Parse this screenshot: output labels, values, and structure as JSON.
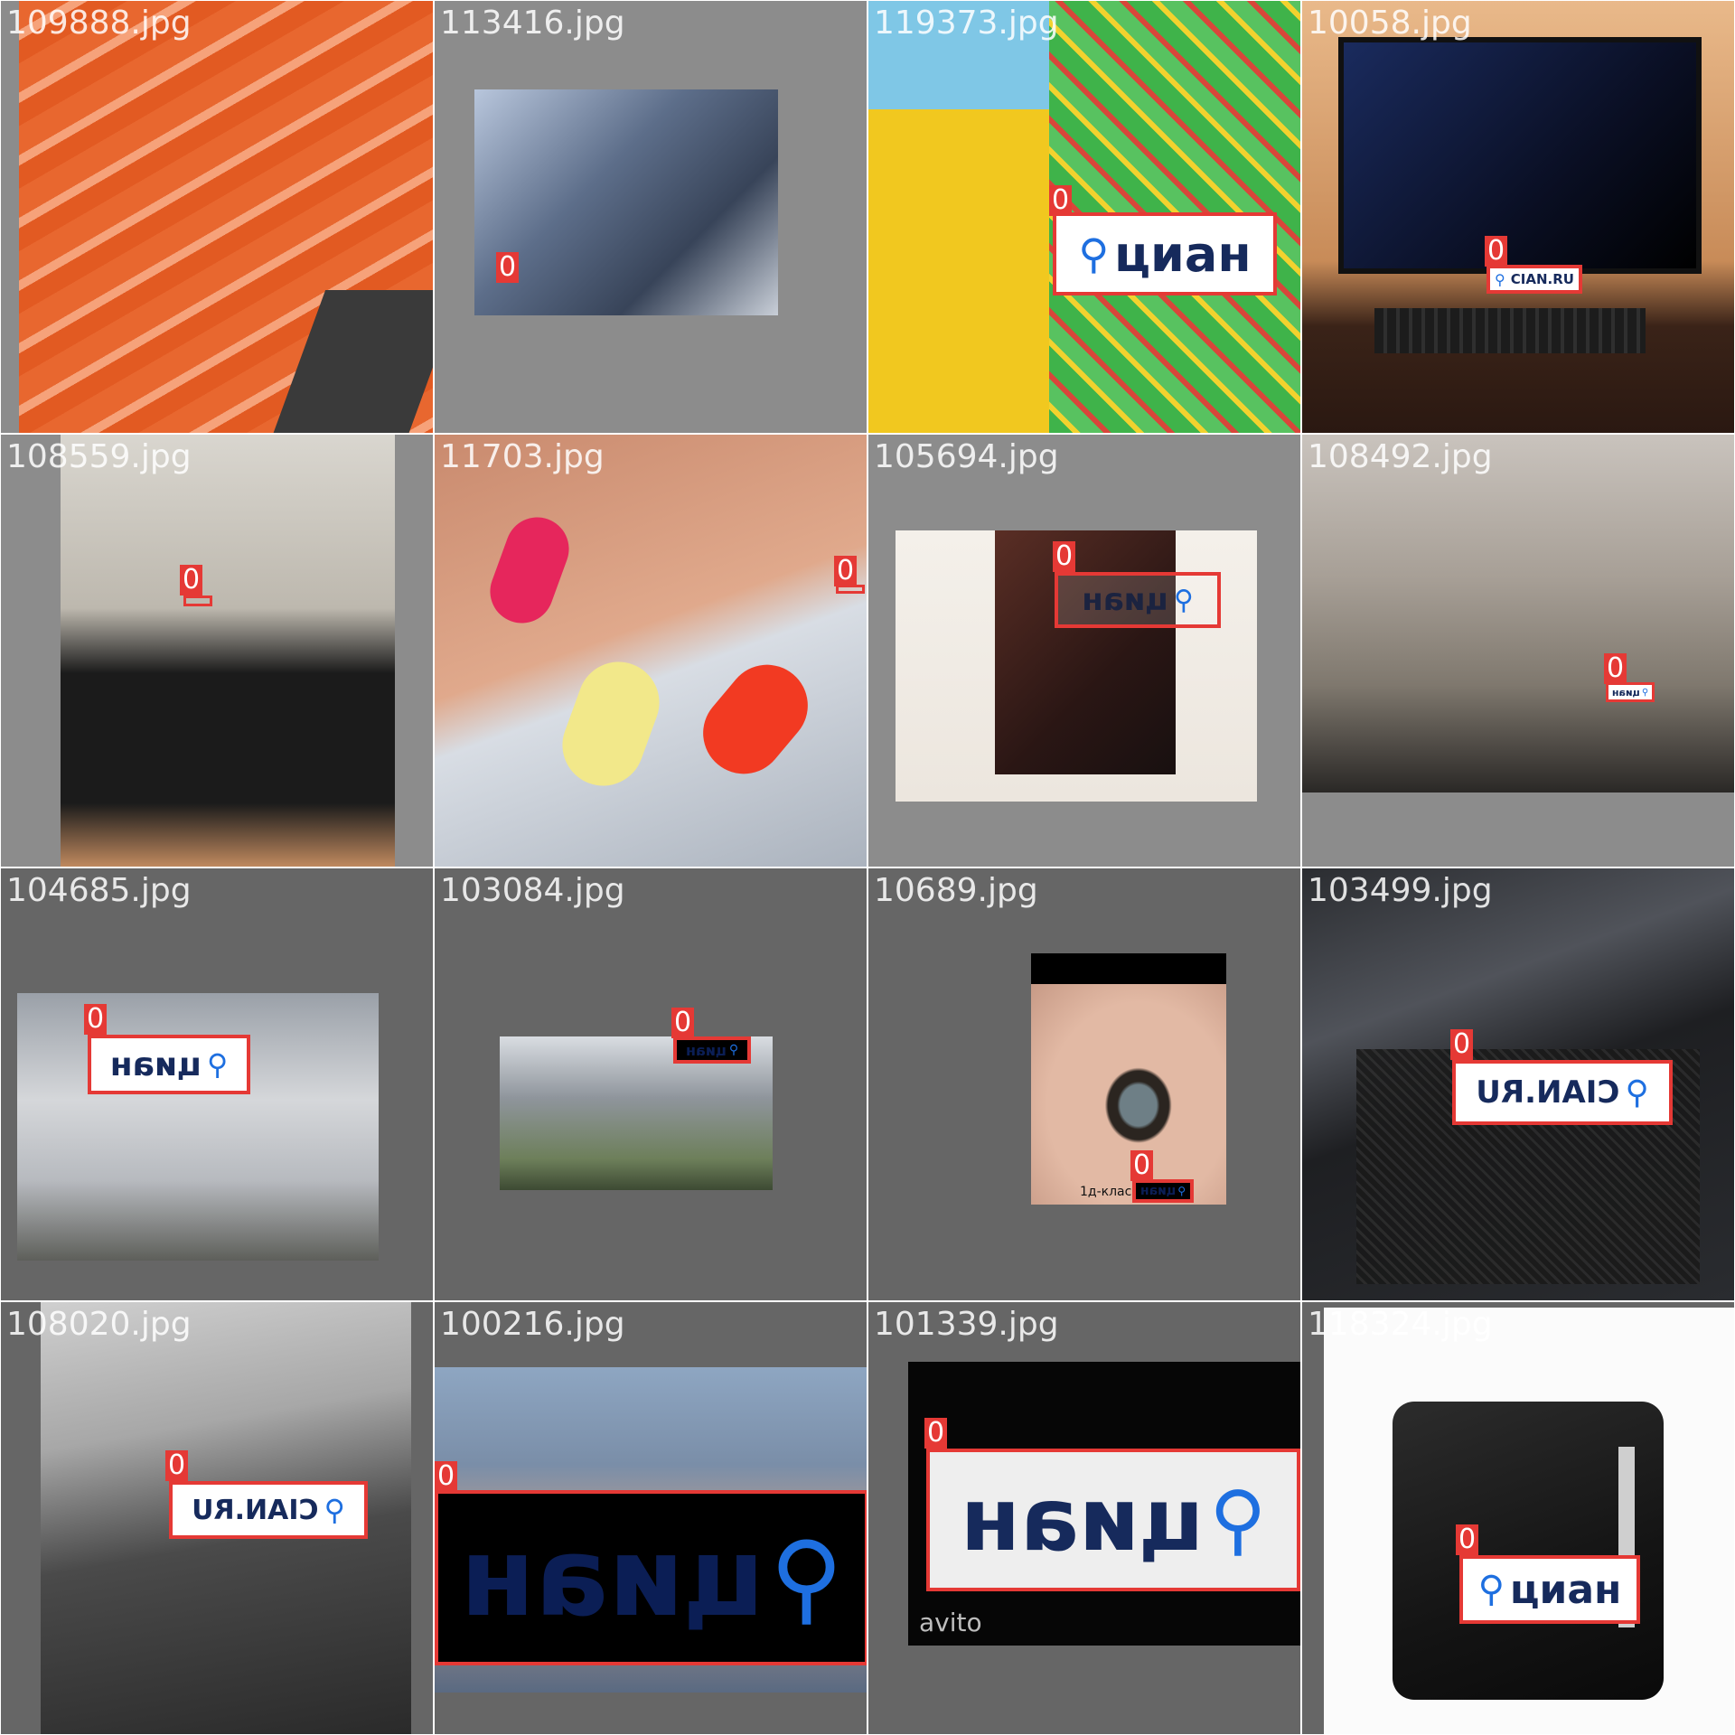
{
  "tiles": [
    {
      "filename": "109888.jpg",
      "bg": "#8c8c8c",
      "photo": "salmon",
      "detections": []
    },
    {
      "filename": "113416.jpg",
      "bg": "#8c8c8c",
      "photo": "car_seat",
      "detections": [
        {
          "label": "0"
        }
      ]
    },
    {
      "filename": "119373.jpg",
      "bg": "#8c8c8c",
      "photo": "jumper",
      "detections": [
        {
          "label": "0",
          "logo": "циан"
        }
      ]
    },
    {
      "filename": "10058.jpg",
      "bg": "#8c8c8c",
      "photo": "monitor",
      "detections": [
        {
          "label": "0",
          "logo": "CIAN.RU"
        }
      ]
    },
    {
      "filename": "108559.jpg",
      "bg": "#8c8c8c",
      "photo": "boots",
      "detections": [
        {
          "label": "0"
        }
      ]
    },
    {
      "filename": "11703.jpg",
      "bg": "#8c8c8c",
      "photo": "nails",
      "detections": [
        {
          "label": "0"
        }
      ]
    },
    {
      "filename": "105694.jpg",
      "bg": "#8c8c8c",
      "photo": "box",
      "detections": [
        {
          "label": "0",
          "logo": "циан"
        }
      ]
    },
    {
      "filename": "108492.jpg",
      "bg": "#8c8c8c",
      "photo": "yard",
      "detections": [
        {
          "label": "0",
          "logo": "циан"
        }
      ]
    },
    {
      "filename": "104685.jpg",
      "bg": "#666666",
      "photo": "car",
      "detections": [
        {
          "label": "0",
          "logo": "циан"
        }
      ]
    },
    {
      "filename": "103084.jpg",
      "bg": "#666666",
      "photo": "building",
      "detections": [
        {
          "label": "0",
          "logo": "циан"
        }
      ]
    },
    {
      "filename": "10689.jpg",
      "bg": "#666666",
      "photo": "eye",
      "caption": "1д-класс",
      "detections": [
        {
          "label": "0",
          "logo": "циан"
        }
      ]
    },
    {
      "filename": "103499.jpg",
      "bg": "#666666",
      "photo": "car_floor",
      "detections": [
        {
          "label": "0",
          "logo": "CIAN.RU"
        }
      ]
    },
    {
      "filename": "108020.jpg",
      "bg": "#666666",
      "photo": "car_interior",
      "detections": [
        {
          "label": "0",
          "logo": "CIAN.RU"
        }
      ]
    },
    {
      "filename": "100216.jpg",
      "bg": "#666666",
      "photo": "hand",
      "detections": [
        {
          "label": "0",
          "logo": "циан"
        }
      ]
    },
    {
      "filename": "101339.jpg",
      "bg": "#666666",
      "photo": "avito",
      "caption": "avito",
      "detections": [
        {
          "label": "0",
          "logo": "циан"
        }
      ]
    },
    {
      "filename": "118324.jpg",
      "bg": "#666666",
      "photo": "bag",
      "detections": [
        {
          "label": "0",
          "logo": "циан"
        }
      ]
    }
  ],
  "colors": {
    "box": "#e53935",
    "logo_blue": "#1e6fe0",
    "logo_navy": "#162a5c"
  },
  "icons": {
    "logo_mark": "location-pin-icon"
  }
}
